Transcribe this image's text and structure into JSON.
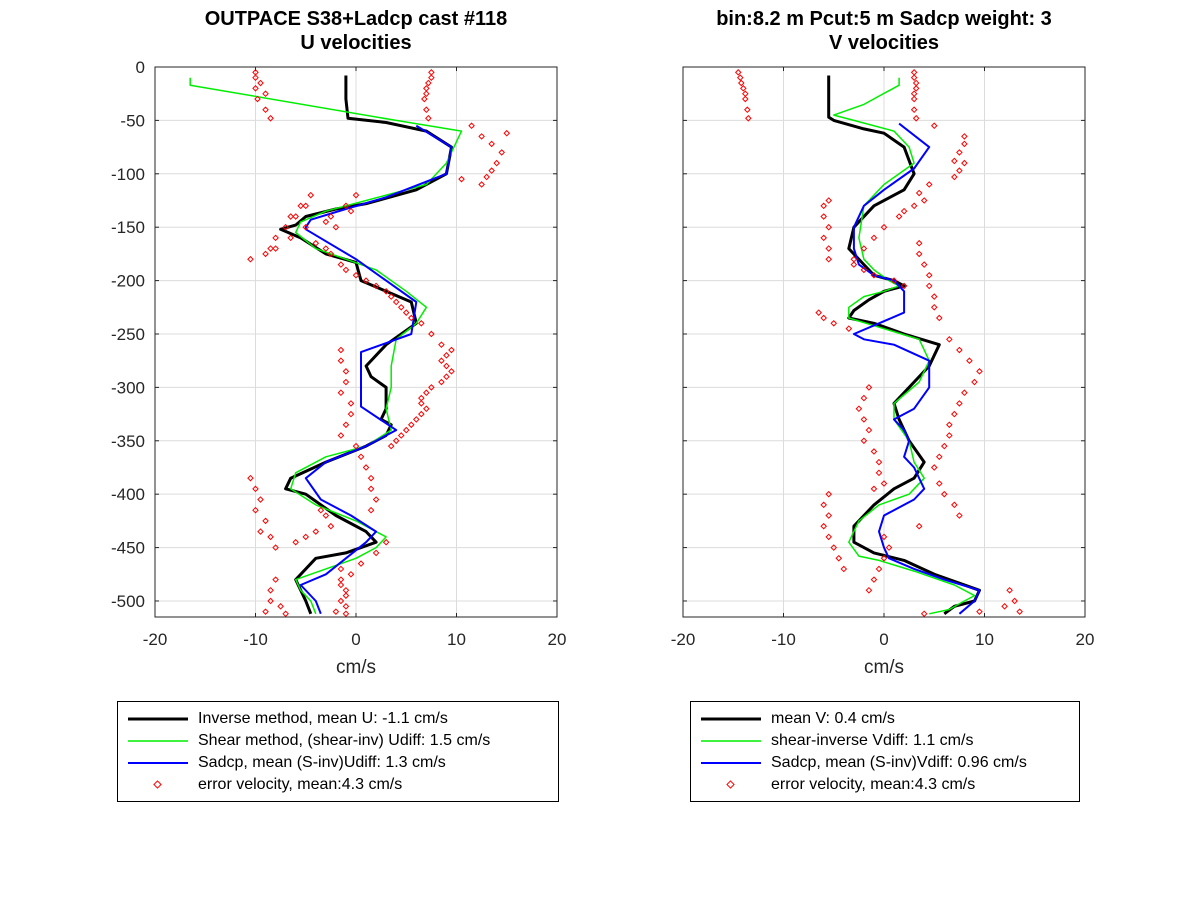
{
  "titles": {
    "left": [
      "OUTPACE S38+Ladcp cast #118",
      "U velocities"
    ],
    "right": [
      "bin:8.2 m  Pcut:5 m  Sadcp weight: 3",
      "V velocities"
    ]
  },
  "colors": {
    "inverse": "#000000",
    "shear": "#00ee00",
    "sadcp": "#0000ff",
    "error": "#ff0000",
    "grid": "#dcdcdc"
  },
  "chart_data": [
    {
      "type": "line",
      "title": "OUTPACE S38+Ladcp cast #118 U velocities",
      "xlabel": "cm/s",
      "ylabel": "",
      "xlim": [
        -20,
        20
      ],
      "ylim": [
        -515,
        0
      ],
      "xticks": [
        "-20",
        "-10",
        "0",
        "10",
        "20"
      ],
      "yticks": [
        "0",
        "-50",
        "-100",
        "-150",
        "-200",
        "-250",
        "-300",
        "-350",
        "-400",
        "-450",
        "-500"
      ],
      "grid": true,
      "legend_position": "below",
      "series": [
        {
          "name": "Inverse method, mean U:  -1.1 cm/s",
          "role": "inverse",
          "x": [
            -1,
            -1,
            -0.8,
            3,
            7,
            9.5,
            9,
            6,
            1,
            -2,
            -5,
            -6,
            -7.5,
            -5.5,
            -3,
            0,
            0.5,
            1,
            3,
            5.5,
            6,
            3,
            1,
            1.5,
            3,
            3,
            2.5,
            3.5,
            3,
            1,
            -3,
            -6.5,
            -7,
            -5,
            -2,
            1,
            2,
            -1,
            -4,
            -6,
            -5,
            -4.5
          ],
          "y": [
            -8,
            -30,
            -48,
            -52,
            -60,
            -75,
            -100,
            -115,
            -128,
            -133,
            -140,
            -148,
            -152,
            -160,
            -175,
            -183,
            -200,
            -202,
            -210,
            -220,
            -240,
            -260,
            -280,
            -290,
            -300,
            -320,
            -330,
            -335,
            -345,
            -355,
            -370,
            -385,
            -395,
            -400,
            -420,
            -435,
            -445,
            -455,
            -460,
            -480,
            -500,
            -512
          ]
        },
        {
          "name": "Shear method, (shear-inv)  Udiff:  1.5 cm/s",
          "role": "shear",
          "x": [
            -16.5,
            -16.5,
            4,
            10.5,
            9,
            7,
            1,
            -3,
            -5.5,
            -6,
            -4,
            -1,
            2,
            5,
            7,
            6,
            4,
            3.5,
            3.5,
            3,
            3.5,
            1,
            -3,
            -6,
            -6.5,
            -4,
            0,
            3,
            2,
            0,
            -3,
            -6,
            -5.5,
            -4.5,
            -4
          ],
          "y": [
            -10,
            -17,
            -50,
            -60,
            -90,
            -110,
            -125,
            -135,
            -145,
            -155,
            -170,
            -180,
            -190,
            -210,
            -225,
            -240,
            -255,
            -280,
            -300,
            -320,
            -340,
            -355,
            -365,
            -380,
            -395,
            -410,
            -425,
            -440,
            -450,
            -460,
            -470,
            -480,
            -490,
            -500,
            -512
          ]
        },
        {
          "name": "Sadcp, mean (S-inv)Udiff: 1.3 cm/s",
          "role": "sadcp",
          "x": [
            6,
            9.5,
            9,
            3,
            -1,
            -4.5,
            -5,
            -5,
            0,
            3,
            6,
            5.5,
            0.5,
            0.5,
            0.5,
            4,
            1,
            -3,
            -5,
            -3.5,
            -0.5,
            2,
            1,
            -1,
            -3,
            -5.5,
            -4,
            -3.5
          ],
          "y": [
            -55,
            -75,
            -100,
            -122,
            -133,
            -143,
            -150,
            -152,
            -180,
            -200,
            -220,
            -250,
            -267,
            -290,
            -318,
            -340,
            -355,
            -370,
            -385,
            -405,
            -420,
            -435,
            -445,
            -460,
            -475,
            -485,
            -500,
            -512
          ]
        },
        {
          "name": "error velocity, mean:4.3 cm/s",
          "role": "error",
          "x": [
            -10,
            -10,
            -9.5,
            -10,
            -9,
            -9.8,
            -9,
            -8.5,
            7.5,
            7.5,
            7.2,
            7,
            7,
            6.8,
            7,
            7.2,
            11.5,
            12.5,
            13.5,
            14.5,
            15,
            14,
            13.5,
            13,
            12.5,
            10.5,
            0,
            -1,
            -0.5,
            -2.5,
            -3,
            -2,
            -4.5,
            -5.5,
            -6.5,
            -7,
            -8,
            -8.5,
            -10.5,
            -9,
            -8,
            -6.5,
            -5,
            -6,
            -5,
            -4,
            -3,
            -2.5,
            -1.5,
            -1,
            0,
            1,
            2,
            3,
            3.5,
            4,
            4.5,
            5,
            5.5,
            6.5,
            7.5,
            8.5,
            9.5,
            9,
            8.5,
            9,
            9.5,
            9,
            8.5,
            7.5,
            7,
            6.5,
            6.5,
            7,
            6.5,
            6,
            5.5,
            5,
            4.5,
            4,
            3.5,
            -1.5,
            -1.5,
            -1,
            -1,
            -1.5,
            -0.5,
            -0.5,
            -1,
            -1.5,
            0,
            0.5,
            1,
            1.5,
            1.5,
            2,
            1.5,
            -10.5,
            -10,
            -9.5,
            -10,
            -9,
            -9.5,
            -8.5,
            -8,
            -6,
            -5,
            -4,
            -2.5,
            -3,
            -3.5,
            3,
            2,
            0.5,
            -0.5,
            -1.5,
            -1,
            -1,
            -1,
            -8,
            -8.5,
            -8.5,
            -9,
            -7.5,
            -7,
            -1.5,
            -1.5,
            -1,
            -1.5,
            -2
          ],
          "y": [
            -5,
            -10,
            -15,
            -20,
            -25,
            -30,
            -40,
            -48,
            -5,
            -10,
            -15,
            -20,
            -25,
            -30,
            -40,
            -48,
            -55,
            -65,
            -72,
            -80,
            -62,
            -90,
            -97,
            -103,
            -110,
            -105,
            -120,
            -130,
            -135,
            -140,
            -145,
            -150,
            -120,
            -130,
            -140,
            -150,
            -160,
            -170,
            -180,
            -175,
            -170,
            -160,
            -150,
            -140,
            -130,
            -165,
            -170,
            -175,
            -185,
            -190,
            -195,
            -200,
            -205,
            -210,
            -215,
            -220,
            -225,
            -230,
            -235,
            -240,
            -250,
            -260,
            -265,
            -270,
            -275,
            -280,
            -285,
            -290,
            -295,
            -300,
            -305,
            -310,
            -315,
            -320,
            -325,
            -330,
            -335,
            -340,
            -345,
            -350,
            -355,
            -265,
            -275,
            -285,
            -295,
            -305,
            -315,
            -325,
            -335,
            -345,
            -355,
            -365,
            -375,
            -385,
            -395,
            -405,
            -415,
            -385,
            -395,
            -405,
            -415,
            -425,
            -435,
            -440,
            -450,
            -445,
            -440,
            -435,
            -430,
            -420,
            -415,
            -445,
            -455,
            -465,
            -475,
            -485,
            -495,
            -505,
            -512,
            -480,
            -490,
            -500,
            -510,
            -505,
            -512,
            -470,
            -480,
            -490,
            -500,
            -510
          ]
        }
      ]
    },
    {
      "type": "line",
      "title": "bin:8.2 m  Pcut:5 m  Sadcp weight: 3 V velocities",
      "xlabel": "cm/s",
      "ylabel": "",
      "xlim": [
        -20,
        20
      ],
      "ylim": [
        -515,
        0
      ],
      "xticks": [
        "-20",
        "-10",
        "0",
        "10",
        "20"
      ],
      "grid": true,
      "legend_position": "below",
      "series": [
        {
          "name": "mean V:  0.4 cm/s",
          "role": "inverse",
          "x": [
            -5.5,
            -5.5,
            -5,
            -2,
            0,
            2,
            3,
            2,
            -1,
            -3,
            -3.5,
            -2,
            -1,
            1,
            2,
            0,
            -1.5,
            -3,
            -3.5,
            -1,
            2,
            5.5,
            4.5,
            2.5,
            1,
            1.5,
            2.5,
            4,
            3,
            1,
            -1,
            -3,
            -3,
            -1,
            2,
            5,
            9.5,
            9,
            7,
            6
          ],
          "y": [
            -8,
            -47,
            -50,
            -58,
            -62,
            -75,
            -100,
            -115,
            -130,
            -150,
            -170,
            -185,
            -195,
            -200,
            -205,
            -210,
            -218,
            -228,
            -235,
            -240,
            -250,
            -260,
            -280,
            -300,
            -315,
            -330,
            -350,
            -370,
            -385,
            -395,
            -410,
            -430,
            -445,
            -455,
            -462,
            -475,
            -490,
            -500,
            -505,
            -512
          ]
        },
        {
          "name": "shear-inverse Vdiff:  1.1 cm/s",
          "role": "shear",
          "x": [
            1.5,
            1.5,
            -2,
            -5,
            -3,
            1,
            2.5,
            3,
            0,
            -2,
            -2.5,
            -2,
            -1,
            0.5,
            1.5,
            0,
            -2,
            -3.5,
            -3.5,
            0,
            3.5,
            4.5,
            3.5,
            1,
            1,
            2.5,
            3,
            4,
            2.5,
            -0.5,
            -2.5,
            -3.5,
            -2.5,
            -0.5,
            3,
            7,
            9,
            8,
            6.5,
            4.5
          ],
          "y": [
            -10,
            -17,
            -35,
            -45,
            -50,
            -60,
            -75,
            -90,
            -110,
            -130,
            -160,
            -180,
            -190,
            -200,
            -205,
            -210,
            -215,
            -225,
            -235,
            -245,
            -255,
            -275,
            -295,
            -315,
            -330,
            -350,
            -370,
            -385,
            -400,
            -410,
            -425,
            -445,
            -458,
            -462,
            -472,
            -485,
            -495,
            -500,
            -508,
            -512
          ]
        },
        {
          "name": "Sadcp, mean (S-inv)Vdiff: 0.96 cm/s",
          "role": "sadcp",
          "x": [
            1.5,
            4.5,
            3,
            0,
            -2,
            -3,
            -3,
            -2.5,
            -1,
            1,
            2,
            2,
            -0.5,
            -3,
            -2,
            1,
            4.5,
            4.5,
            3,
            1,
            2,
            2.5,
            2,
            3,
            4,
            3,
            0,
            -0.5,
            0,
            0.5,
            3,
            6,
            9.5,
            9,
            7.5
          ],
          "y": [
            -53,
            -75,
            -95,
            -115,
            -130,
            -150,
            -170,
            -185,
            -195,
            -200,
            -210,
            -230,
            -240,
            -250,
            -255,
            -260,
            -275,
            -300,
            -320,
            -330,
            -340,
            -350,
            -365,
            -375,
            -395,
            -405,
            -420,
            -435,
            -450,
            -460,
            -470,
            -480,
            -490,
            -500,
            -512
          ]
        },
        {
          "name": "error velocity, mean:4.3 cm/s",
          "role": "error",
          "x": [
            -14.5,
            -14.3,
            -14.2,
            -14,
            -13.8,
            -13.8,
            -13.6,
            -13.5,
            3,
            3,
            3.2,
            3.2,
            3,
            3,
            3,
            3.2,
            5,
            8,
            8,
            7.5,
            7,
            8,
            7.5,
            7,
            4.5,
            3.5,
            4,
            3,
            2,
            1.5,
            0,
            -1,
            -2,
            -3,
            -5.5,
            -6,
            -6,
            -5.5,
            -6,
            -5.5,
            -5.5,
            -3,
            -2,
            -1,
            1,
            2,
            3.5,
            3.5,
            4,
            4.5,
            4.5,
            5,
            5,
            5.5,
            -6,
            -6.5,
            -5,
            -3.5,
            6.5,
            7.5,
            8.5,
            9.5,
            9,
            8,
            7.5,
            7,
            6.5,
            6.5,
            6,
            5.5,
            5,
            -1.5,
            -2,
            -2.5,
            -2,
            -1.5,
            -2,
            -1,
            -0.5,
            -0.5,
            0,
            5.5,
            6,
            7,
            7.5,
            3.5,
            -1,
            -5.5,
            -6,
            -5.5,
            -6,
            -5.5,
            -5,
            -4.5,
            -4,
            0,
            0.5,
            0,
            12.5,
            13,
            13.5,
            12,
            9.5,
            4,
            -0.5,
            -1,
            -1.5
          ],
          "y": [
            -5,
            -10,
            -15,
            -20,
            -25,
            -30,
            -40,
            -48,
            -5,
            -10,
            -15,
            -20,
            -25,
            -30,
            -40,
            -48,
            -55,
            -65,
            -72,
            -80,
            -88,
            -90,
            -97,
            -103,
            -110,
            -118,
            -125,
            -130,
            -135,
            -140,
            -150,
            -160,
            -170,
            -180,
            -125,
            -130,
            -140,
            -150,
            -160,
            -170,
            -180,
            -185,
            -190,
            -195,
            -200,
            -205,
            -165,
            -175,
            -185,
            -195,
            -205,
            -215,
            -225,
            -235,
            -235,
            -230,
            -240,
            -245,
            -255,
            -265,
            -275,
            -285,
            -295,
            -305,
            -315,
            -325,
            -335,
            -345,
            -355,
            -365,
            -375,
            -300,
            -310,
            -320,
            -330,
            -340,
            -350,
            -360,
            -370,
            -380,
            -390,
            -390,
            -400,
            -410,
            -420,
            -430,
            -395,
            -400,
            -410,
            -420,
            -430,
            -440,
            -450,
            -460,
            -470,
            -440,
            -450,
            -460,
            -490,
            -500,
            -510,
            -505,
            -510,
            -512,
            -470,
            -480,
            -490
          ]
        }
      ]
    }
  ],
  "legends": {
    "left": [
      {
        "label": "Inverse method, mean U:  -1.1 cm/s",
        "role": "inverse"
      },
      {
        "label": "Shear method, (shear-inv)  Udiff:  1.5 cm/s",
        "role": "shear"
      },
      {
        "label": "Sadcp, mean (S-inv)Udiff: 1.3 cm/s",
        "role": "sadcp"
      },
      {
        "label": "error velocity, mean:4.3 cm/s",
        "role": "error"
      }
    ],
    "right": [
      {
        "label": "mean V:  0.4 cm/s",
        "role": "inverse"
      },
      {
        "label": "shear-inverse Vdiff:  1.1 cm/s",
        "role": "shear"
      },
      {
        "label": "Sadcp, mean (S-inv)Vdiff: 0.96 cm/s",
        "role": "sadcp"
      },
      {
        "label": "error velocity, mean:4.3 cm/s",
        "role": "error"
      }
    ]
  }
}
